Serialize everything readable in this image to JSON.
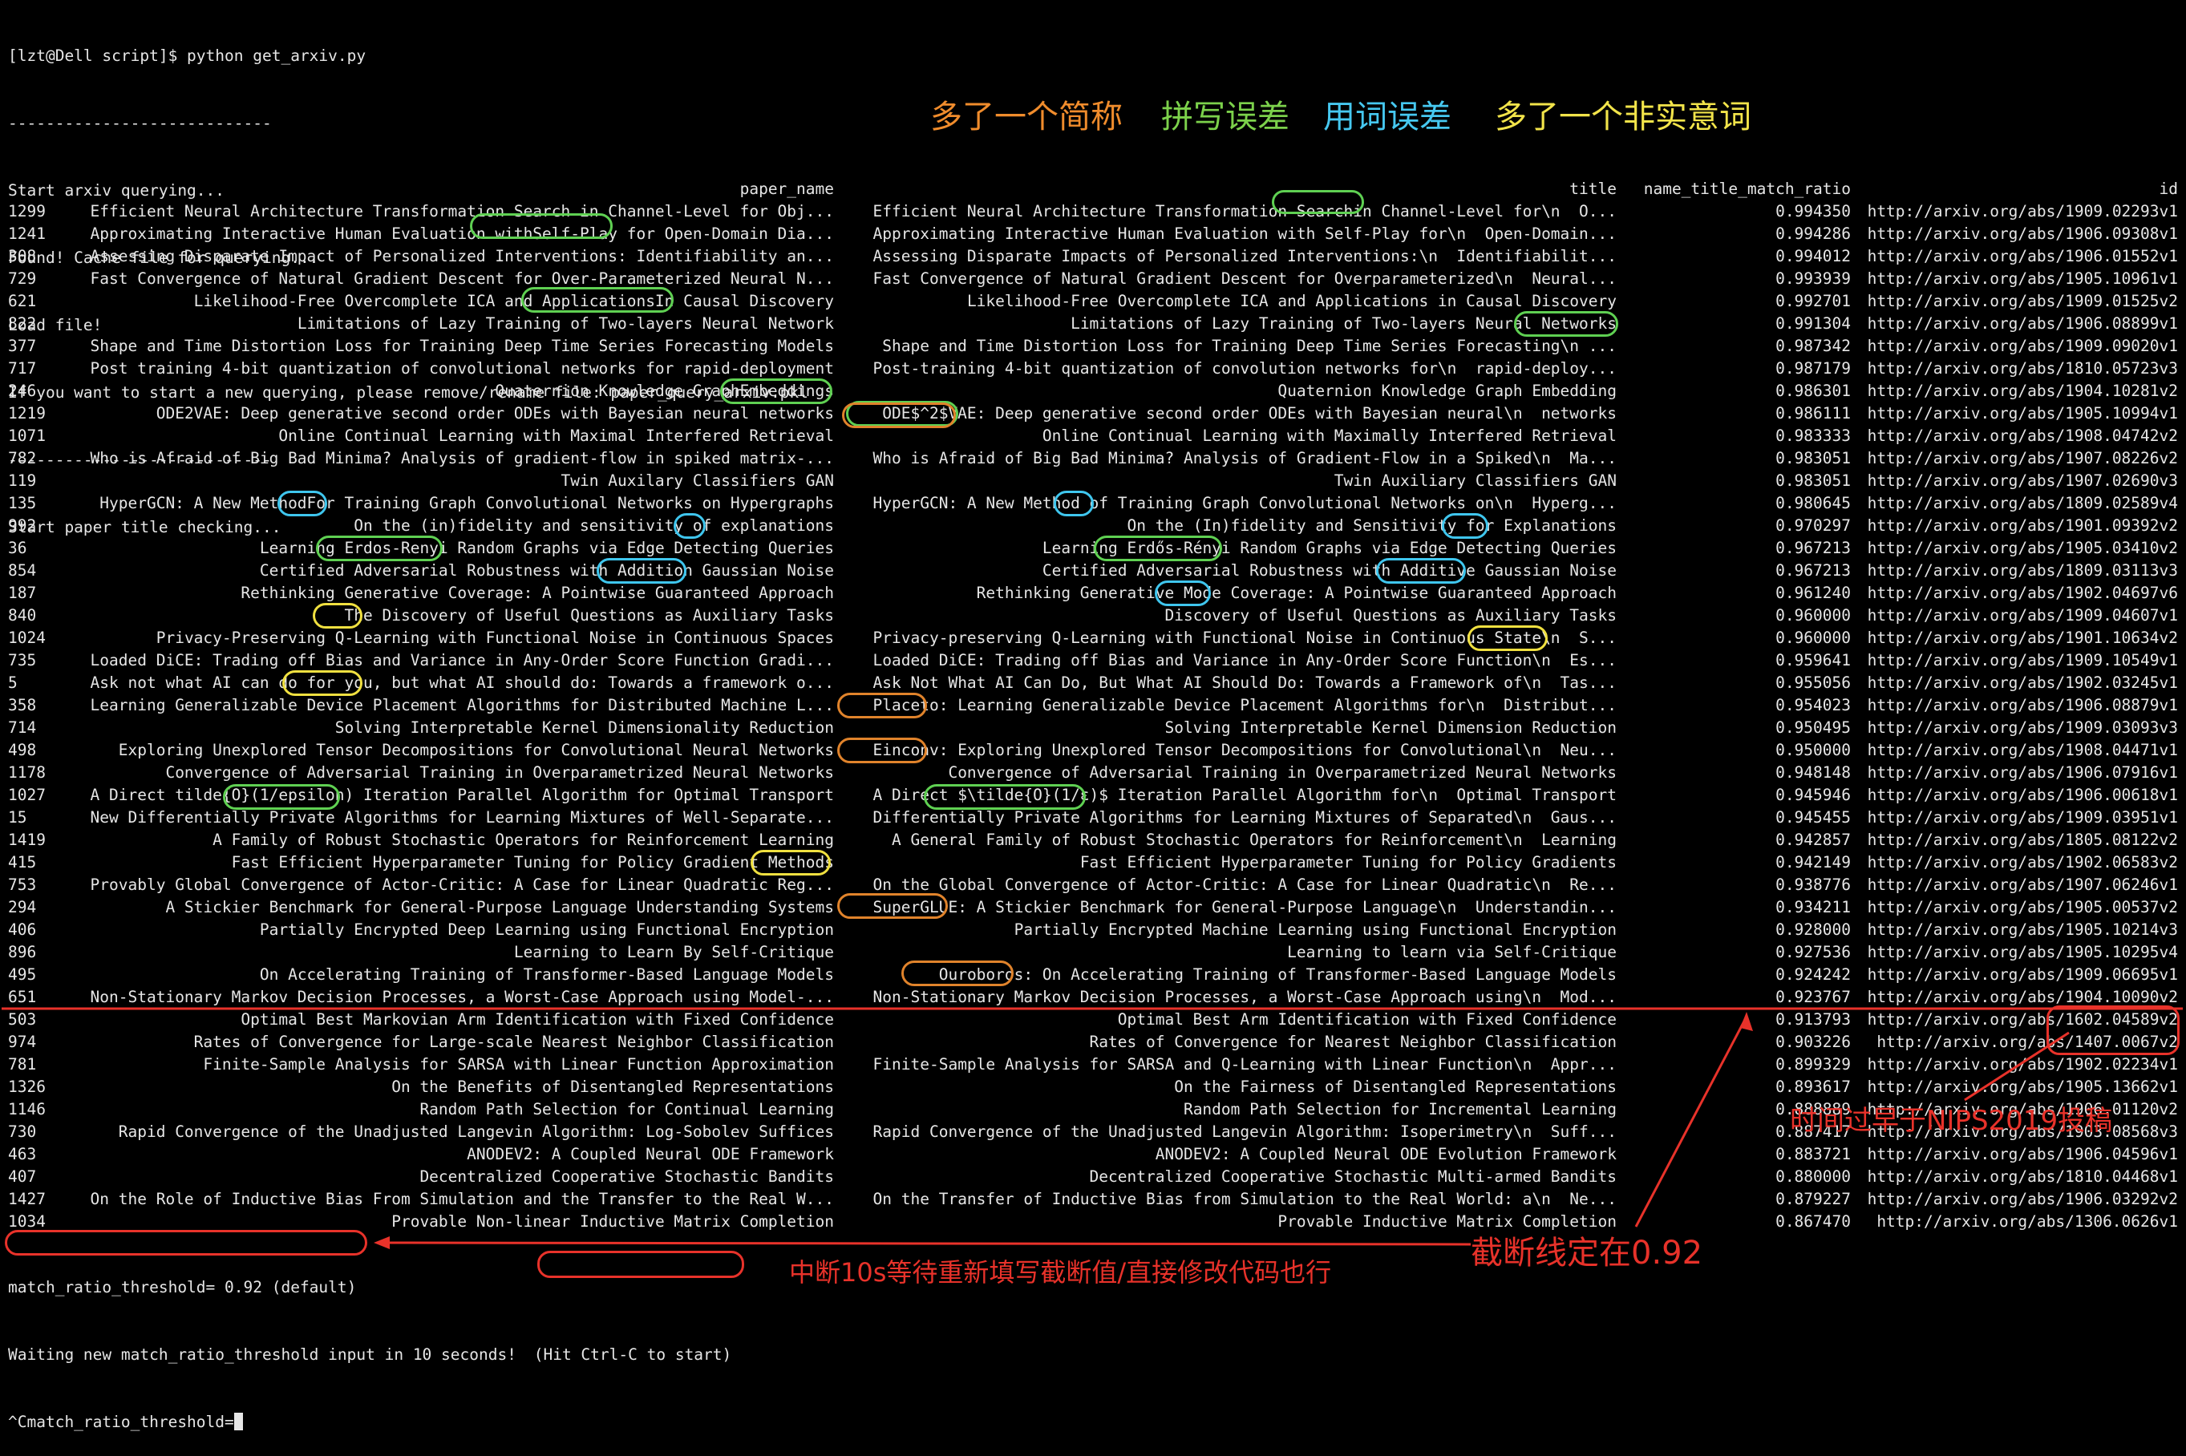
{
  "terminal": {
    "header_lines": [
      "[lzt@Dell script]$ python get_arxiv.py",
      "----------------------------",
      "Start arxiv querying...",
      "Found! Cache file for querying...",
      "Load file!",
      "If you want to start a new querying, please remove/rename file: paper_query_arxiv.pkl",
      "----------------------------",
      "Start paper title checking..."
    ],
    "columns": {
      "paper_name": "paper_name",
      "title": "title",
      "ratio": "name_title_match_ratio",
      "id": "id"
    },
    "rows": [
      [
        "1299",
        "Efficient Neural Architecture Transformation Search in Channel-Level for Obj...",
        "Efficient Neural Architecture Transformation Searchin Channel-Level for\\n  O...",
        "0.994350",
        "http://arxiv.org/abs/1909.02293v1"
      ],
      [
        "1241",
        "Approximating Interactive Human Evaluation withSelf-Play for Open-Domain Dia...",
        "Approximating Interactive Human Evaluation with Self-Play for\\n  Open-Domain...",
        "0.994286",
        "http://arxiv.org/abs/1906.09308v1"
      ],
      [
        "308",
        "Assessing Disparate Impact of Personalized Interventions: Identifiability an...",
        "Assessing Disparate Impacts of Personalized Interventions:\\n  Identifiabilit...",
        "0.994012",
        "http://arxiv.org/abs/1906.01552v1"
      ],
      [
        "729",
        "Fast Convergence of Natural Gradient Descent for Over-Parameterized Neural N...",
        "Fast Convergence of Natural Gradient Descent for Overparameterized\\n  Neural...",
        "0.993939",
        "http://arxiv.org/abs/1905.10961v1"
      ],
      [
        "621",
        "Likelihood-Free Overcomplete ICA and ApplicationsIn Causal Discovery",
        "Likelihood-Free Overcomplete ICA and Applications in Causal Discovery",
        "0.992701",
        "http://arxiv.org/abs/1909.01525v2"
      ],
      [
        "822",
        "Limitations of Lazy Training of Two-layers Neural Network",
        "Limitations of Lazy Training of Two-layers Neural Networks",
        "0.991304",
        "http://arxiv.org/abs/1906.08899v1"
      ],
      [
        "377",
        "Shape and Time Distortion Loss for Training Deep Time Series Forecasting Models",
        "Shape and Time Distortion Loss for Training Deep Time Series Forecasting\\n ...",
        "0.987342",
        "http://arxiv.org/abs/1909.09020v1"
      ],
      [
        "717",
        "Post training 4-bit quantization of convolutional networks for rapid-deployment",
        "Post-training 4-bit quantization of convolution networks for\\n  rapid-deploy...",
        "0.987179",
        "http://arxiv.org/abs/1810.05723v3"
      ],
      [
        "246",
        "Quaternion Knowledge GraphEmbeddings",
        "Quaternion Knowledge Graph Embedding",
        "0.986301",
        "http://arxiv.org/abs/1904.10281v2"
      ],
      [
        "1219",
        "ODE2VAE: Deep generative second order ODEs with Bayesian neural networks",
        "ODE$^2$VAE: Deep generative second order ODEs with Bayesian neural\\n  networks",
        "0.986111",
        "http://arxiv.org/abs/1905.10994v1"
      ],
      [
        "1071",
        "Online Continual Learning with Maximal Interfered Retrieval",
        "Online Continual Learning with Maximally Interfered Retrieval",
        "0.983333",
        "http://arxiv.org/abs/1908.04742v2"
      ],
      [
        "782",
        "Who is Afraid of Big Bad Minima? Analysis of gradient-flow in spiked matrix-...",
        "Who is Afraid of Big Bad Minima? Analysis of Gradient-Flow in a Spiked\\n  Ma...",
        "0.983051",
        "http://arxiv.org/abs/1907.08226v2"
      ],
      [
        "119",
        "Twin Auxilary Classifiers GAN",
        "Twin Auxiliary Classifiers GAN",
        "0.983051",
        "http://arxiv.org/abs/1907.02690v3"
      ],
      [
        "135",
        "HyperGCN: A New MethodFor Training Graph Convolutional Networks on Hypergraphs",
        "HyperGCN: A New Method of Training Graph Convolutional Networks on\\n  Hyperg...",
        "0.980645",
        "http://arxiv.org/abs/1809.02589v4"
      ],
      [
        "992",
        "On the (in)fidelity and sensitivity of explanations",
        "On the (In)fidelity and Sensitivity for Explanations",
        "0.970297",
        "http://arxiv.org/abs/1901.09392v2"
      ],
      [
        "36",
        "Learning Erdos-Renyi Random Graphs via Edge Detecting Queries",
        "Learning Erdős-Rényi Random Graphs via Edge Detecting Queries",
        "0.967213",
        "http://arxiv.org/abs/1905.03410v2"
      ],
      [
        "854",
        "Certified Adversarial Robustness with Addition Gaussian Noise",
        "Certified Adversarial Robustness with Additive Gaussian Noise",
        "0.967213",
        "http://arxiv.org/abs/1809.03113v3"
      ],
      [
        "187",
        "Rethinking Generative Coverage: A Pointwise Guaranteed Approach",
        "Rethinking Generative Mode Coverage: A Pointwise Guaranteed Approach",
        "0.961240",
        "http://arxiv.org/abs/1902.04697v6"
      ],
      [
        "840",
        "The Discovery of Useful Questions as Auxiliary Tasks",
        "Discovery of Useful Questions as Auxiliary Tasks",
        "0.960000",
        "http://arxiv.org/abs/1909.04607v1"
      ],
      [
        "1024",
        "Privacy-Preserving Q-Learning with Functional Noise in Continuous Spaces",
        "Privacy-preserving Q-Learning with Functional Noise in Continuous State\\n  S...",
        "0.960000",
        "http://arxiv.org/abs/1901.10634v2"
      ],
      [
        "735",
        "Loaded DiCE: Trading off Bias and Variance in Any-Order Score Function Gradi...",
        "Loaded DiCE: Trading off Bias and Variance in Any-Order Score Function\\n  Es...",
        "0.959641",
        "http://arxiv.org/abs/1909.10549v1"
      ],
      [
        "5",
        "Ask not what AI can do for you, but what AI should do: Towards a framework o...",
        "Ask Not What AI Can Do, But What AI Should Do: Towards a Framework of\\n  Tas...",
        "0.955056",
        "http://arxiv.org/abs/1902.03245v1"
      ],
      [
        "358",
        "Learning Generalizable Device Placement Algorithms for Distributed Machine L...",
        "Placeto: Learning Generalizable Device Placement Algorithms for\\n  Distribut...",
        "0.954023",
        "http://arxiv.org/abs/1906.08879v1"
      ],
      [
        "714",
        "Solving Interpretable Kernel Dimensionality Reduction",
        "Solving Interpretable Kernel Dimension Reduction",
        "0.950495",
        "http://arxiv.org/abs/1909.03093v3"
      ],
      [
        "498",
        "Exploring Unexplored Tensor Decompositions for Convolutional Neural Networks",
        "Einconv: Exploring Unexplored Tensor Decompositions for Convolutional\\n  Neu...",
        "0.950000",
        "http://arxiv.org/abs/1908.04471v1"
      ],
      [
        "1178",
        "Convergence of Adversarial Training in Overparametrized Neural Networks",
        "Convergence of Adversarial Training in Overparametrized Neural Networks",
        "0.948148",
        "http://arxiv.org/abs/1906.07916v1"
      ],
      [
        "1027",
        "A Direct tilde{O}(1/epsilon) Iteration Parallel Algorithm for Optimal Transport",
        "A Direct $\\tilde{O}(1/ε)$ Iteration Parallel Algorithm for\\n  Optimal Transport",
        "0.945946",
        "http://arxiv.org/abs/1906.00618v1"
      ],
      [
        "15",
        "New Differentially Private Algorithms for Learning Mixtures of Well-Separate...",
        "Differentially Private Algorithms for Learning Mixtures of Separated\\n  Gaus...",
        "0.945455",
        "http://arxiv.org/abs/1909.03951v1"
      ],
      [
        "1419",
        "A Family of Robust Stochastic Operators for Reinforcement Learning",
        "A General Family of Robust Stochastic Operators for Reinforcement\\n  Learning",
        "0.942857",
        "http://arxiv.org/abs/1805.08122v2"
      ],
      [
        "415",
        "Fast Efficient Hyperparameter Tuning for Policy Gradient Methods",
        "Fast Efficient Hyperparameter Tuning for Policy Gradients",
        "0.942149",
        "http://arxiv.org/abs/1902.06583v2"
      ],
      [
        "753",
        "Provably Global Convergence of Actor-Critic: A Case for Linear Quadratic Reg...",
        "On the Global Convergence of Actor-Critic: A Case for Linear Quadratic\\n  Re...",
        "0.938776",
        "http://arxiv.org/abs/1907.06246v1"
      ],
      [
        "294",
        "A Stickier Benchmark for General-Purpose Language Understanding Systems",
        "SuperGLUE: A Stickier Benchmark for General-Purpose Language\\n  Understandin...",
        "0.934211",
        "http://arxiv.org/abs/1905.00537v2"
      ],
      [
        "406",
        "Partially Encrypted Deep Learning using Functional Encryption",
        "Partially Encrypted Machine Learning using Functional Encryption",
        "0.928000",
        "http://arxiv.org/abs/1905.10214v3"
      ],
      [
        "896",
        "Learning to Learn By Self-Critique",
        "Learning to learn via Self-Critique",
        "0.927536",
        "http://arxiv.org/abs/1905.10295v4"
      ],
      [
        "495",
        "On Accelerating Training of Transformer-Based Language Models",
        "Ouroboros: On Accelerating Training of Transformer-Based Language Models",
        "0.924242",
        "http://arxiv.org/abs/1909.06695v1"
      ],
      [
        "651",
        "Non-Stationary Markov Decision Processes, a Worst-Case Approach using Model-...",
        "Non-Stationary Markov Decision Processes, a Worst-Case Approach using\\n  Mod...",
        "0.923767",
        "http://arxiv.org/abs/1904.10090v2"
      ],
      [
        "503",
        "Optimal Best Markovian Arm Identification with Fixed Confidence",
        "Optimal Best Arm Identification with Fixed Confidence",
        "0.913793",
        "http://arxiv.org/abs/1602.04589v2"
      ],
      [
        "974",
        "Rates of Convergence for Large-scale Nearest Neighbor Classification",
        "Rates of Convergence for Nearest Neighbor Classification",
        "0.903226",
        "http://arxiv.org/abs/1407.0067v2"
      ],
      [
        "781",
        "Finite-Sample Analysis for SARSA with Linear Function Approximation",
        "Finite-Sample Analysis for SARSA and Q-Learning with Linear Function\\n  Appr...",
        "0.899329",
        "http://arxiv.org/abs/1902.02234v1"
      ],
      [
        "1326",
        "On the Benefits of Disentangled Representations",
        "On the Fairness of Disentangled Representations",
        "0.893617",
        "http://arxiv.org/abs/1905.13662v1"
      ],
      [
        "1146",
        "Random Path Selection for Continual Learning",
        "Random Path Selection for Incremental Learning",
        "0.888889",
        "http://arxiv.org/abs/1906.01120v2"
      ],
      [
        "730",
        "Rapid Convergence of the Unadjusted Langevin Algorithm: Log-Sobolev Suffices",
        "Rapid Convergence of the Unadjusted Langevin Algorithm: Isoperimetry\\n  Suff...",
        "0.887417",
        "http://arxiv.org/abs/1903.08568v3"
      ],
      [
        "463",
        "ANODEV2: A Coupled Neural ODE Framework",
        "ANODEV2: A Coupled Neural ODE Evolution Framework",
        "0.883721",
        "http://arxiv.org/abs/1906.04596v1"
      ],
      [
        "407",
        "Decentralized Cooperative Stochastic Bandits",
        "Decentralized Cooperative Stochastic Multi-armed Bandits",
        "0.880000",
        "http://arxiv.org/abs/1810.04468v1"
      ],
      [
        "1427",
        "On the Role of Inductive Bias From Simulation and the Transfer to the Real W...",
        "On the Transfer of Inductive Bias from Simulation to the Real World: a\\n  Ne...",
        "0.879227",
        "http://arxiv.org/abs/1906.03292v2"
      ],
      [
        "1034",
        "Provable Non-linear Inductive Matrix Completion",
        "Provable Inductive Matrix Completion",
        "0.867470",
        "http://arxiv.org/abs/1306.0626v1"
      ]
    ],
    "footer": {
      "threshold_line": "match_ratio_threshold= 0.92 (default)",
      "waiting_text": "Waiting new match_ratio_threshold input in 10 seconds!",
      "hint_text": "Hit Ctrl-C to start)",
      "prompt_line": "^Cmatch_ratio_threshold="
    }
  },
  "legend": {
    "extra_abbrev": "多了一个简称",
    "spelling_error": "拼写误差",
    "wording_error": "用词误差",
    "extra_meaningless": "多了一个非实意词"
  },
  "annotations": {
    "time_note": "时间过早于NIPS2019投稿",
    "cutoff_note": "截断线定在0.92",
    "interrupt_note": "中断10s等待重新填写截断值/直接修改代码也行"
  },
  "colors": {
    "background": "#000000",
    "text": "#e6e6e6",
    "abbrev_orange": "#f08c2c",
    "spelling_green": "#7cd14b",
    "wording_cyan": "#46c8f0",
    "meaningless_yellow": "#f2e44a",
    "annotation_red": "#e8322a"
  }
}
